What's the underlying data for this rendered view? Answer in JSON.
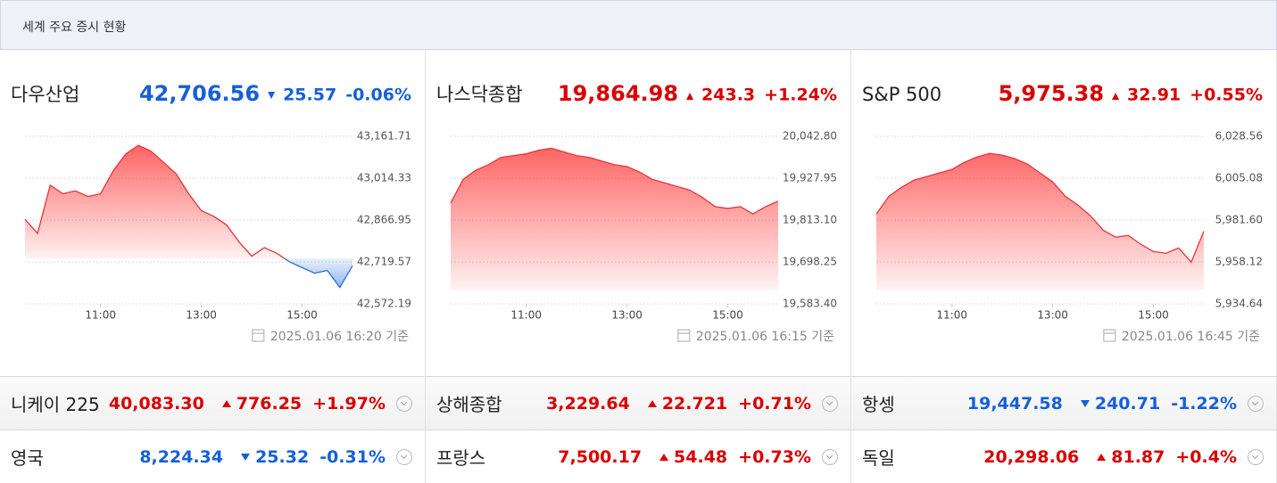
{
  "header": {
    "title": "세계 주요 증시 현황"
  },
  "panels": [
    {
      "name": "다우산업",
      "price": "42,706.56",
      "change": "25.57",
      "change_pct": "-0.06%",
      "trend": "down",
      "timestamp": "2025.01.06 16:20 기준"
    },
    {
      "name": "나스닥종합",
      "price": "19,864.98",
      "change": "243.3",
      "change_pct": "+1.24%",
      "trend": "up",
      "timestamp": "2025.01.06 16:15 기준"
    },
    {
      "name": "S&P 500",
      "price": "5,975.38",
      "change": "32.91",
      "change_pct": "+0.55%",
      "trend": "up",
      "timestamp": "2025.01.06 16:45 기준"
    }
  ],
  "chart_data": [
    {
      "type": "area",
      "x": [
        "09:30",
        "09:45",
        "10:00",
        "10:15",
        "10:30",
        "10:45",
        "11:00",
        "11:15",
        "11:30",
        "11:45",
        "12:00",
        "12:15",
        "12:30",
        "12:45",
        "13:00",
        "13:15",
        "13:30",
        "13:45",
        "14:00",
        "14:15",
        "14:30",
        "14:45",
        "15:00",
        "15:15",
        "15:30",
        "15:45",
        "16:00"
      ],
      "series": [
        {
          "color": "#e8333a",
          "values": [
            42870,
            42820,
            42990,
            42960,
            42970,
            42950,
            42960,
            43040,
            43100,
            43130,
            43110,
            43070,
            43030,
            42960,
            42900,
            42880,
            42850,
            42790,
            42740,
            42770,
            42750,
            42720,
            42700,
            42680,
            42690,
            42630,
            42706.56
          ]
        }
      ],
      "baseline": 42732.13,
      "below_color": "#2a6fdb",
      "ylim": [
        42572.19,
        43161.71
      ],
      "yticks": [
        {
          "value": 43161.71,
          "label": "43,161.71"
        },
        {
          "value": 43014.33,
          "label": "43,014.33"
        },
        {
          "value": 42866.95,
          "label": "42,866.95"
        },
        {
          "value": 42719.57,
          "label": "42,719.57"
        },
        {
          "value": 42572.19,
          "label": "42,572.19"
        }
      ],
      "xticks": [
        "11:00",
        "13:00",
        "15:00"
      ],
      "grid": true
    },
    {
      "type": "area",
      "x": [
        "09:30",
        "09:45",
        "10:00",
        "10:15",
        "10:30",
        "10:45",
        "11:00",
        "11:15",
        "11:30",
        "11:45",
        "12:00",
        "12:15",
        "12:30",
        "12:45",
        "13:00",
        "13:15",
        "13:30",
        "13:45",
        "14:00",
        "14:15",
        "14:30",
        "14:45",
        "15:00",
        "15:15",
        "15:30",
        "15:45",
        "16:00"
      ],
      "series": [
        {
          "color": "#e8333a",
          "values": [
            19860,
            19925,
            19950,
            19965,
            19985,
            19990,
            19995,
            20005,
            20010,
            20000,
            19990,
            19985,
            19975,
            19965,
            19960,
            19945,
            19925,
            19915,
            19905,
            19895,
            19875,
            19850,
            19845,
            19850,
            19830,
            19850,
            19864.98
          ]
        }
      ],
      "baseline": 19621.68,
      "below_color": "#2a6fdb",
      "ylim": [
        19583.4,
        20042.8
      ],
      "yticks": [
        {
          "value": 20042.8,
          "label": "20,042.80"
        },
        {
          "value": 19927.95,
          "label": "19,927.95"
        },
        {
          "value": 19813.1,
          "label": "19,813.10"
        },
        {
          "value": 19698.25,
          "label": "19,698.25"
        },
        {
          "value": 19583.4,
          "label": "19,583.40"
        }
      ],
      "xticks": [
        "11:00",
        "13:00",
        "15:00"
      ],
      "grid": true
    },
    {
      "type": "area",
      "x": [
        "09:30",
        "09:45",
        "10:00",
        "10:15",
        "10:30",
        "10:45",
        "11:00",
        "11:15",
        "11:30",
        "11:45",
        "12:00",
        "12:15",
        "12:30",
        "12:45",
        "13:00",
        "13:15",
        "13:30",
        "13:45",
        "14:00",
        "14:15",
        "14:30",
        "14:45",
        "15:00",
        "15:15",
        "15:30",
        "15:45",
        "16:00"
      ],
      "series": [
        {
          "color": "#e8333a",
          "values": [
            5985,
            5995,
            6000,
            6004,
            6006,
            6008,
            6010,
            6014,
            6017,
            6019,
            6018,
            6016,
            6013,
            6008,
            6003,
            5995,
            5990,
            5984,
            5976,
            5972,
            5973,
            5968,
            5964,
            5963,
            5966,
            5958,
            5975.38
          ]
        }
      ],
      "baseline": 5942.47,
      "below_color": "#2a6fdb",
      "ylim": [
        5934.64,
        6028.56
      ],
      "yticks": [
        {
          "value": 6028.56,
          "label": "6,028.56"
        },
        {
          "value": 6005.08,
          "label": "6,005.08"
        },
        {
          "value": 5981.6,
          "label": "5,981.60"
        },
        {
          "value": 5958.12,
          "label": "5,958.12"
        },
        {
          "value": 5934.64,
          "label": "5,934.64"
        }
      ],
      "xticks": [
        "11:00",
        "13:00",
        "15:00"
      ],
      "grid": true
    }
  ],
  "rows": [
    [
      {
        "name": "니케이 225",
        "price": "40,083.30",
        "change": "776.25",
        "change_pct": "+1.97%",
        "trend": "up"
      },
      {
        "name": "상해종합",
        "price": "3,229.64",
        "change": "22.721",
        "change_pct": "+0.71%",
        "trend": "up"
      },
      {
        "name": "항셍",
        "price": "19,447.58",
        "change": "240.71",
        "change_pct": "-1.22%",
        "trend": "down"
      }
    ],
    [
      {
        "name": "영국",
        "price": "8,224.34",
        "change": "25.32",
        "change_pct": "-0.31%",
        "trend": "down"
      },
      {
        "name": "프랑스",
        "price": "7,500.17",
        "change": "54.48",
        "change_pct": "+0.73%",
        "trend": "up"
      },
      {
        "name": "독일",
        "price": "20,298.06",
        "change": "81.87",
        "change_pct": "+0.4%",
        "trend": "up"
      }
    ]
  ]
}
